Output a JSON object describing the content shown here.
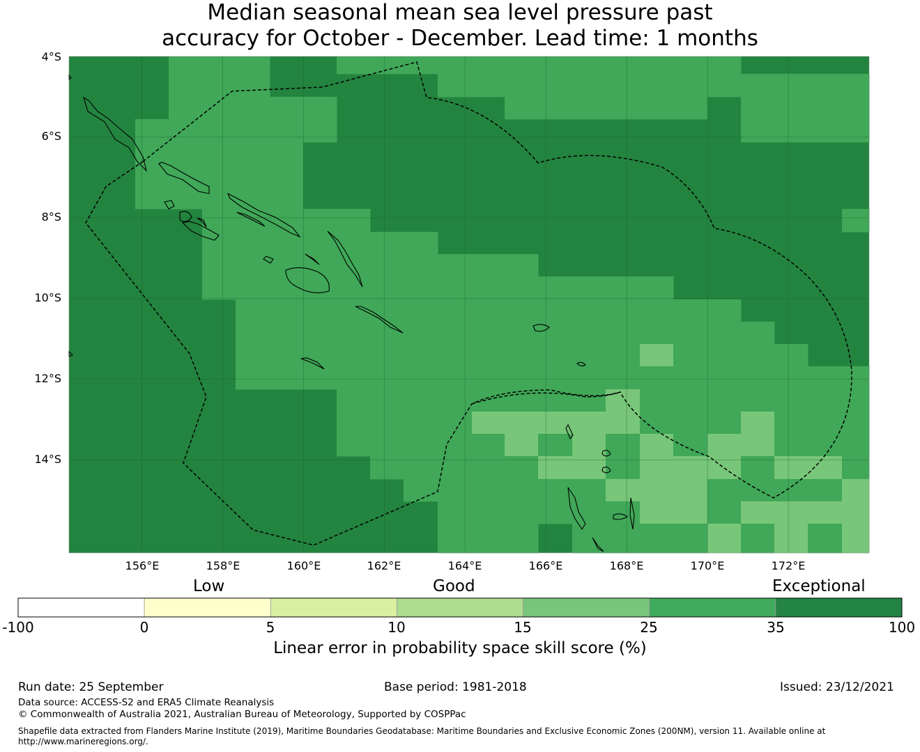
{
  "title": {
    "line1": "Median seasonal mean sea level pressure past",
    "line2": "accuracy for October - December. Lead time: 1 months"
  },
  "map": {
    "lat_labels": [
      "4°S",
      "6°S",
      "8°S",
      "10°S",
      "12°S",
      "14°S"
    ],
    "lon_labels": [
      "156°E",
      "158°E",
      "160°E",
      "162°E",
      "164°E",
      "166°E",
      "168°E",
      "170°E",
      "172°E"
    ],
    "lon_range": [
      154.2,
      174.0
    ],
    "lat_range": [
      -4.0,
      -16.3
    ],
    "dark_fill": "#23843f",
    "mid_fill": "#40a858",
    "light_fill": "#78c679"
  },
  "colorbar": {
    "categories": [
      "Low",
      "Good",
      "Exceptional"
    ],
    "ticks": [
      "-100",
      "0",
      "5",
      "10",
      "15",
      "25",
      "35",
      "100"
    ],
    "colors": [
      "#ffffff",
      "#ffffcc",
      "#d9f0a3",
      "#addd8e",
      "#78c679",
      "#41ab5d",
      "#238443"
    ],
    "label": "Linear error in probability space skill score (%)"
  },
  "footer": {
    "run_date": "Run date: 25 September",
    "base_period": "Base period: 1981-2018",
    "issued": "Issued: 23/12/2021",
    "data_source": "Data source: ACCESS-S2 and ERA5 Climate Reanalysis",
    "copyright": "© Commonwealth of Australia 2021, Australian Bureau of Meteorology, Supported by COSPPac",
    "shapefile_line1": "Shapefile data extracted from Flanders Marine Institute (2019), Maritime Boundaries Geodatabase: Maritime Boundaries and Exclusive Economic Zones (200NM), version 11. Available online at",
    "shapefile_line2": "http://www.marineregions.org/."
  }
}
